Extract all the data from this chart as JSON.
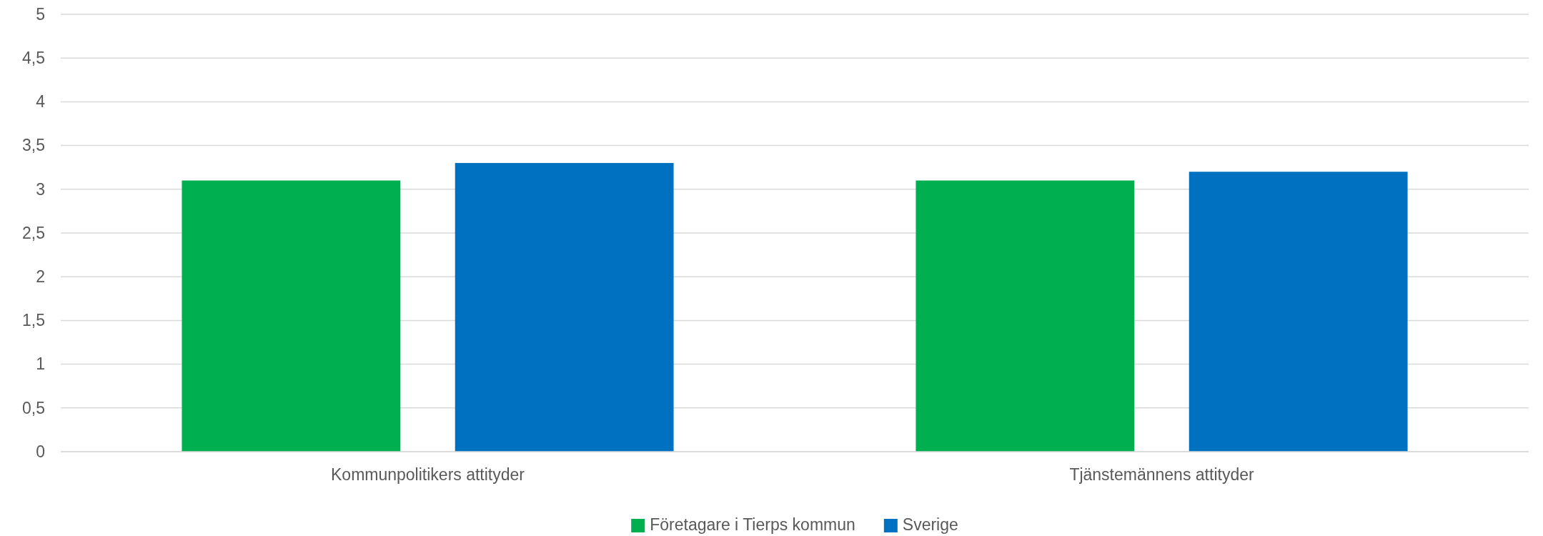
{
  "chart_data": {
    "type": "bar",
    "categories": [
      "Kommunpolitikers attityder",
      "Tjänstemännens attityder"
    ],
    "series": [
      {
        "name": "Företagare i Tierps kommun",
        "color": "#00b050",
        "values": [
          3.1,
          3.1
        ]
      },
      {
        "name": "Sverige",
        "color": "#0070c0",
        "values": [
          3.3,
          3.2
        ]
      }
    ],
    "ylim": [
      0,
      5
    ],
    "yticks": [
      0,
      {
        "value": 0.5,
        "label": "0,5"
      },
      1,
      {
        "value": 1.5,
        "label": "1,5"
      },
      2,
      {
        "value": 2.5,
        "label": "2,5"
      },
      3,
      {
        "value": 3.5,
        "label": "3,5"
      },
      4,
      {
        "value": 4.5,
        "label": "4,5"
      },
      5
    ],
    "grid": "y",
    "legend": "bottom"
  }
}
